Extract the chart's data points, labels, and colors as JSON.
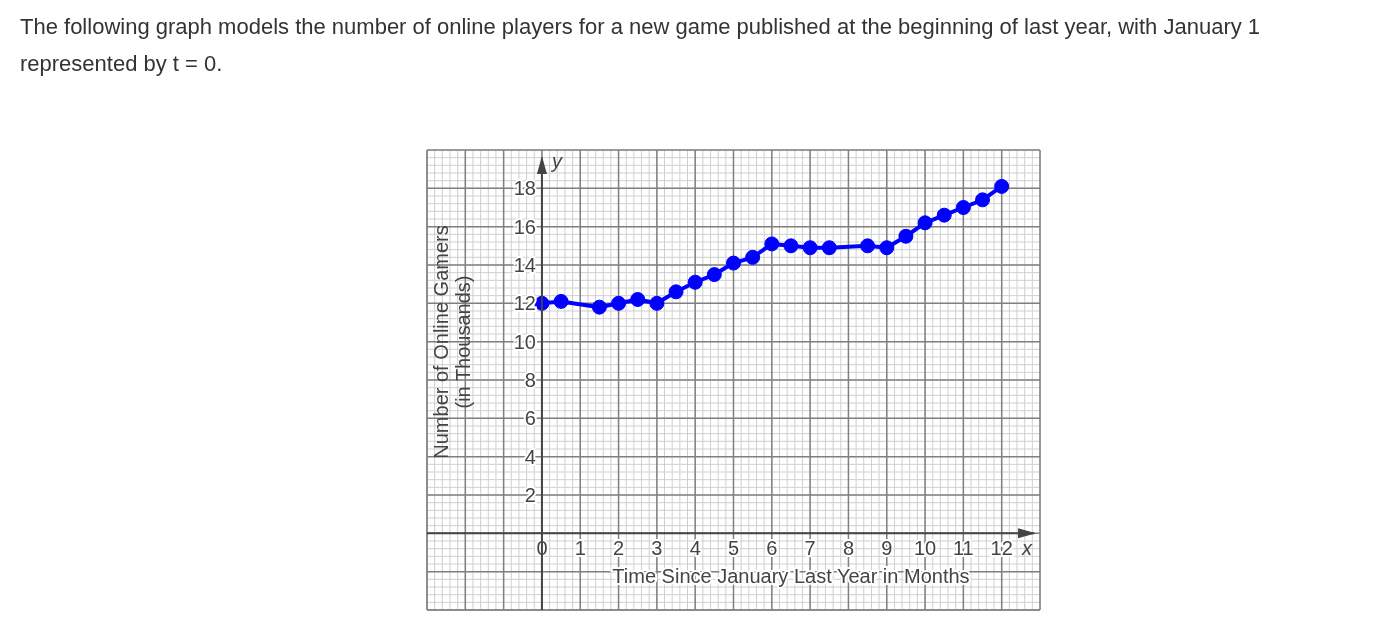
{
  "chart_data": {
    "type": "line",
    "title": "The following graph models the number of online players for a new game published at the beginning of last year, with January 1 represented by t = 0.",
    "xlabel": "Time Since January Last Year in Months",
    "ylabel": "Number of Online Gamers (in Thousands)",
    "annotations": [
      "x",
      "y"
    ],
    "x": [
      0,
      0.5,
      1.5,
      2,
      2.5,
      3,
      3.5,
      4,
      4.5,
      5,
      5.5,
      6,
      6.5,
      7,
      7.5,
      8.5,
      9,
      9.5,
      10,
      10.5,
      11,
      11.5,
      12
    ],
    "series": [
      {
        "color": "#0000ff",
        "values": [
          12.0,
          12.1,
          11.8,
          12.0,
          12.2,
          12.0,
          12.6,
          13.1,
          13.5,
          14.1,
          14.4,
          15.1,
          15.0,
          14.9,
          14.9,
          15.0,
          14.9,
          15.5,
          16.2,
          16.6,
          17.0,
          17.4,
          18.1
        ]
      }
    ],
    "xlim": [
      -3,
      13
    ],
    "ylim": [
      -4,
      20
    ],
    "xticks": [
      0,
      1,
      2,
      3,
      4,
      5,
      6,
      7,
      8,
      9,
      10,
      11,
      12
    ],
    "yticks": [
      2,
      4,
      6,
      8,
      10,
      12,
      14,
      16,
      18
    ],
    "grid": true,
    "marker": "circle",
    "line_style": "solid"
  }
}
